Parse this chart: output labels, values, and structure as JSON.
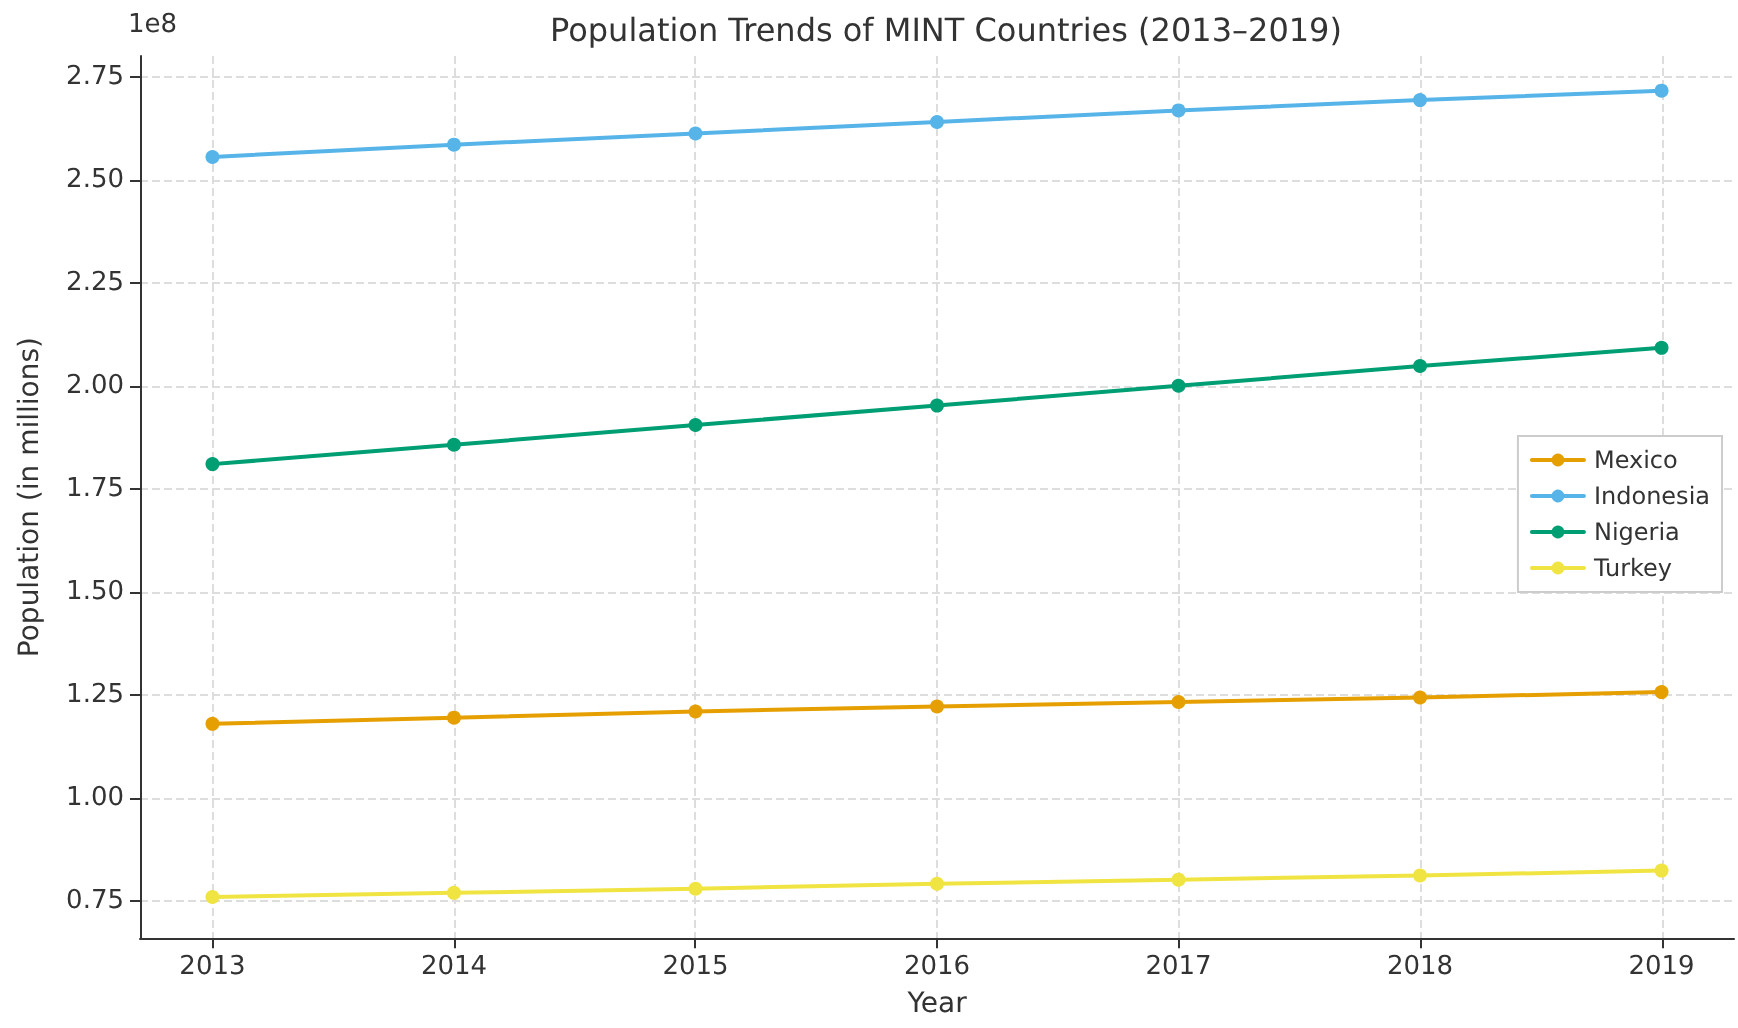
{
  "chart_data": {
    "type": "line",
    "title": "Population Trends of MINT Countries (2013–2019)",
    "xlabel": "Year",
    "ylabel": "Population (in millions)",
    "annotations": [
      "1e8"
    ],
    "x": [
      2013,
      2014,
      2015,
      2016,
      2017,
      2018,
      2019
    ],
    "series": [
      {
        "name": "Mexico",
        "color": "#e69f00",
        "values": [
          1.18,
          1.195,
          1.21,
          1.222,
          1.233,
          1.244,
          1.257
        ]
      },
      {
        "name": "Indonesia",
        "color": "#56b4e9",
        "values": [
          2.555,
          2.585,
          2.612,
          2.64,
          2.668,
          2.693,
          2.716
        ]
      },
      {
        "name": "Nigeria",
        "color": "#009e73",
        "values": [
          1.81,
          1.857,
          1.905,
          1.952,
          2.0,
          2.048,
          2.092
        ]
      },
      {
        "name": "Turkey",
        "color": "#f0e442",
        "values": [
          0.76,
          0.77,
          0.78,
          0.792,
          0.802,
          0.812,
          0.824
        ]
      }
    ],
    "xlim": [
      2012.7,
      2019.3
    ],
    "xticks": [
      2013,
      2014,
      2015,
      2016,
      2017,
      2018,
      2019
    ],
    "ylim": [
      0.66,
      2.8
    ],
    "yticks": [
      0.75,
      {
        "value": 1,
        "label": "1.00"
      },
      1.25,
      {
        "value": 1.5,
        "label": "1.50"
      },
      1.75,
      {
        "value": 2,
        "label": "2.00"
      },
      2.25,
      {
        "value": 2.5,
        "label": "2.50"
      },
      2.75
    ],
    "grid": true,
    "legend": "right",
    "marker": "circle",
    "line_style": "solid"
  }
}
